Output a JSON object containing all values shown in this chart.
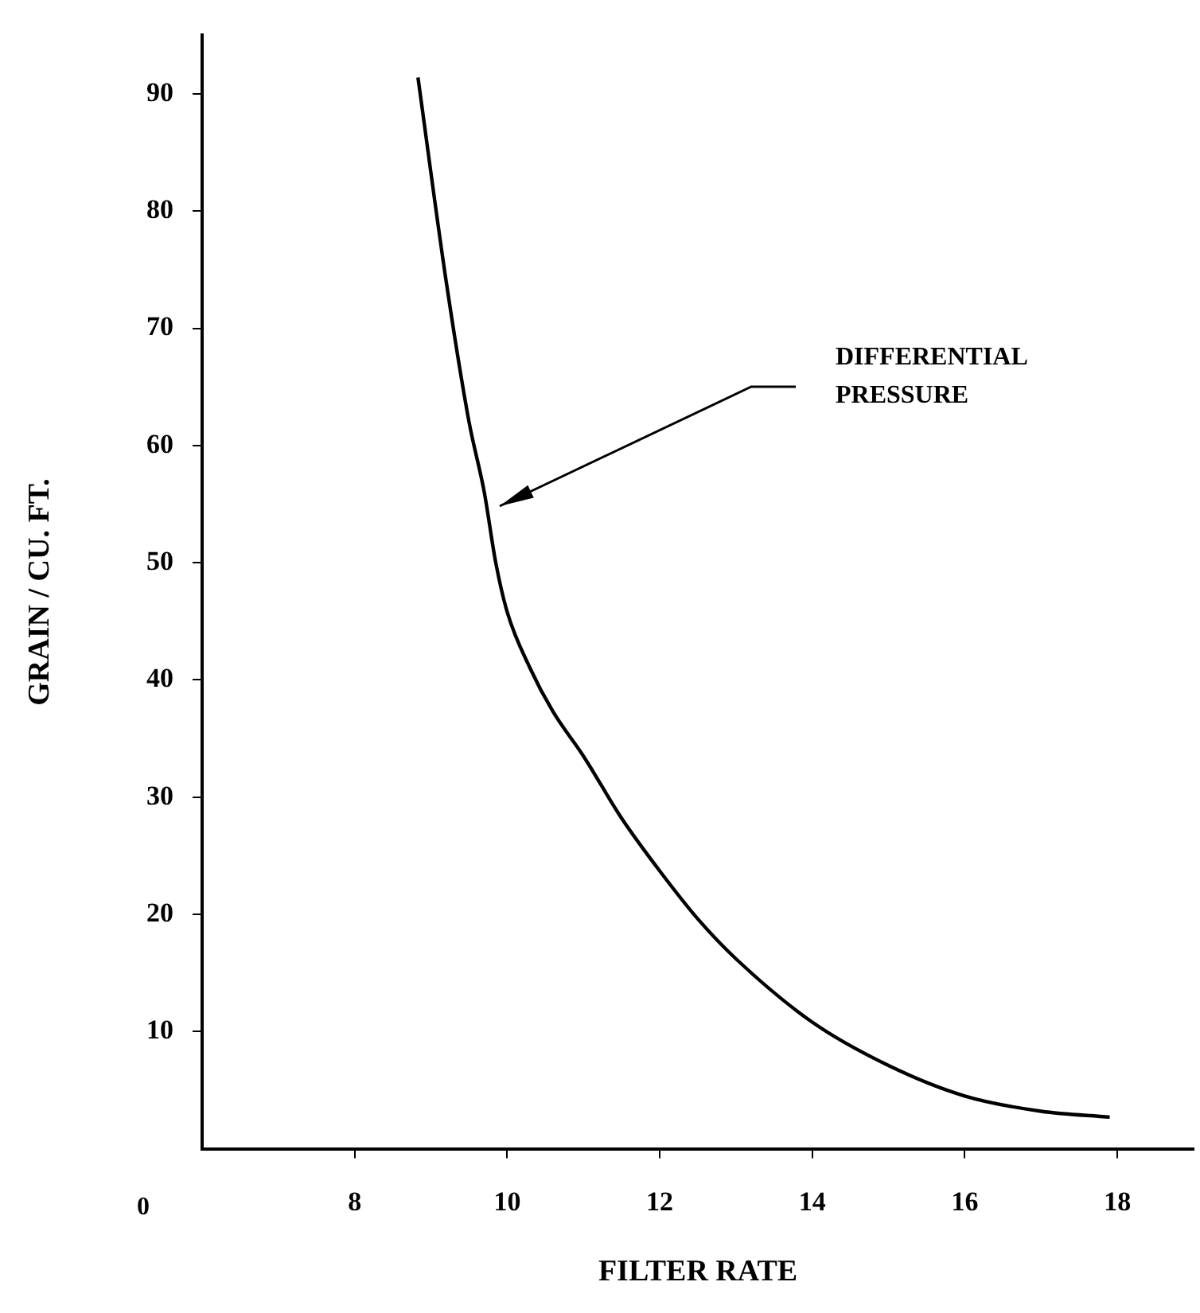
{
  "chart_data": {
    "type": "line",
    "xlabel": "FILTER RATE",
    "ylabel": "GRAIN / CU. FT.",
    "xlim": [
      6,
      19
    ],
    "xticks": [
      8,
      10,
      12,
      14,
      16,
      18
    ],
    "ylim": [
      0,
      95
    ],
    "yticks": [
      10,
      20,
      30,
      40,
      50,
      60,
      70,
      80,
      90
    ],
    "grid": false,
    "legend": false,
    "marker": "none",
    "line_style": "solid",
    "series": [
      {
        "color": "#000000",
        "x": [
          8.83,
          9.2,
          9.5,
          9.7,
          9.85,
          10,
          10.3,
          10.6,
          11,
          11.5,
          12,
          12.5,
          13,
          14,
          15,
          16,
          17,
          17.9
        ],
        "values": [
          91.4,
          74,
          62,
          56,
          50,
          45.8,
          41,
          37.3,
          33.5,
          28.2,
          23.7,
          19.6,
          16.2,
          10.8,
          7.1,
          4.5,
          3.2,
          2.7
        ]
      }
    ],
    "annotations": [
      "DIFFERENTIAL\nPRESSURE",
      "0"
    ]
  }
}
